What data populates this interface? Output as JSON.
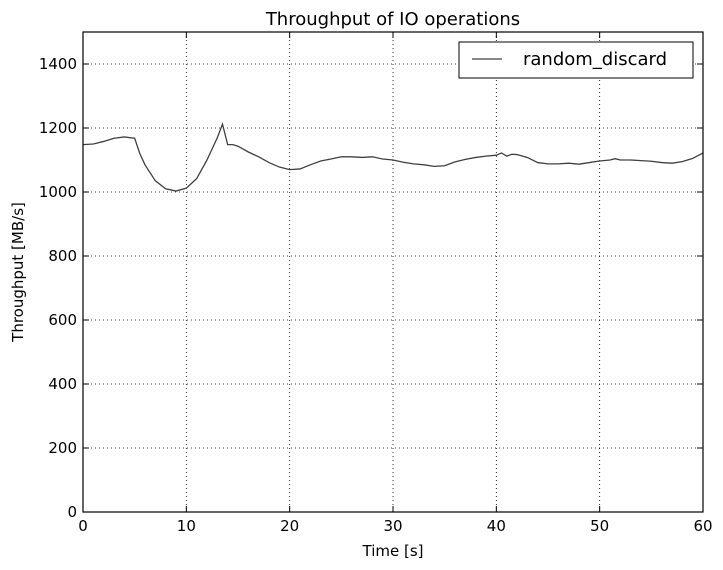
{
  "chart_data": {
    "type": "line",
    "title": "Throughput of IO operations",
    "xlabel": "Time [s]",
    "ylabel": "Throughput [MB/s]",
    "xlim": [
      0,
      60
    ],
    "ylim": [
      0,
      1500
    ],
    "xticks": [
      0,
      10,
      20,
      30,
      40,
      50,
      60
    ],
    "yticks": [
      0,
      200,
      400,
      600,
      800,
      1000,
      1200,
      1400
    ],
    "grid": true,
    "legend_position": "top-right",
    "series": [
      {
        "name": "random_discard",
        "color": "#404040",
        "x": [
          0,
          1,
          2,
          3,
          4,
          5,
          5.5,
          6,
          7,
          8,
          9,
          10,
          11,
          12,
          13,
          13.5,
          14,
          14.5,
          15,
          16,
          17,
          18,
          19,
          20,
          21,
          22,
          23,
          24,
          25,
          26,
          27,
          28,
          29,
          30,
          31,
          32,
          33,
          34,
          35,
          36,
          37,
          38,
          39,
          40,
          40.5,
          41,
          41.5,
          42,
          43,
          44,
          45,
          46,
          47,
          48,
          49,
          50,
          51,
          51.5,
          52,
          53,
          54,
          55,
          56,
          57,
          58,
          59,
          60
        ],
        "y": [
          1148,
          1150,
          1158,
          1168,
          1172,
          1168,
          1120,
          1085,
          1035,
          1010,
          1003,
          1012,
          1042,
          1100,
          1170,
          1212,
          1148,
          1148,
          1143,
          1125,
          1110,
          1092,
          1078,
          1070,
          1072,
          1085,
          1097,
          1103,
          1110,
          1110,
          1108,
          1110,
          1103,
          1100,
          1093,
          1088,
          1085,
          1080,
          1082,
          1094,
          1102,
          1108,
          1112,
          1115,
          1122,
          1112,
          1118,
          1117,
          1108,
          1092,
          1088,
          1088,
          1090,
          1087,
          1092,
          1097,
          1100,
          1104,
          1100,
          1100,
          1098,
          1096,
          1092,
          1090,
          1095,
          1105,
          1122
        ]
      }
    ]
  }
}
